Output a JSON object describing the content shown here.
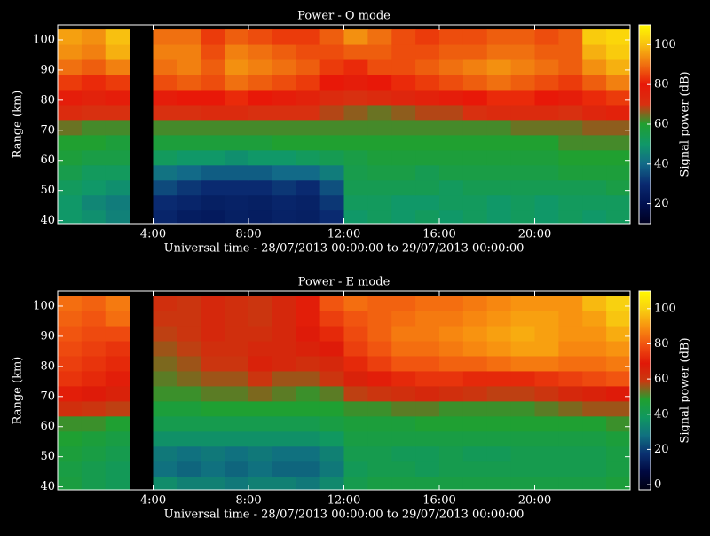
{
  "chart_data": [
    {
      "type": "heatmap",
      "title": "Power - O mode",
      "xlabel": "Universal time - 28/07/2013 00:00:00 to 29/07/2013 00:00:00",
      "ylabel": "Range (km)",
      "colorbar_label": "Signal power (dB)",
      "x": [
        0.5,
        1.5,
        2.5,
        3.5,
        4.5,
        5.5,
        6.5,
        7.5,
        8.5,
        9.5,
        10.5,
        11.5,
        12.5,
        13.5,
        14.5,
        15.5,
        16.5,
        17.5,
        18.5,
        19.5,
        20.5,
        21.5,
        22.5,
        23.5
      ],
      "y": [
        41,
        46,
        51,
        56,
        61,
        66,
        71,
        76,
        81,
        86,
        91,
        96,
        101
      ],
      "z": [
        [
          50,
          48,
          45,
          null,
          28,
          25,
          24,
          26,
          25,
          27,
          26,
          30,
          50,
          52,
          50,
          52,
          50,
          52,
          50,
          52,
          50,
          52,
          50,
          52
        ],
        [
          50,
          46,
          44,
          null,
          30,
          28,
          26,
          27,
          26,
          28,
          27,
          32,
          52,
          52,
          50,
          50,
          52,
          52,
          50,
          52,
          50,
          52,
          52,
          52
        ],
        [
          52,
          50,
          48,
          null,
          35,
          32,
          30,
          30,
          30,
          32,
          30,
          36,
          54,
          54,
          54,
          54,
          52,
          54,
          54,
          54,
          54,
          54,
          54,
          56
        ],
        [
          55,
          52,
          52,
          null,
          42,
          40,
          38,
          38,
          38,
          40,
          40,
          44,
          55,
          56,
          56,
          54,
          56,
          56,
          56,
          56,
          56,
          58,
          58,
          58
        ],
        [
          58,
          56,
          56,
          null,
          52,
          50,
          50,
          48,
          50,
          50,
          52,
          54,
          56,
          58,
          58,
          58,
          58,
          58,
          58,
          58,
          58,
          60,
          60,
          60
        ],
        [
          60,
          60,
          58,
          null,
          58,
          58,
          58,
          58,
          58,
          60,
          60,
          60,
          60,
          60,
          60,
          60,
          60,
          60,
          60,
          60,
          60,
          62,
          62,
          62
        ],
        [
          64,
          62,
          62,
          null,
          62,
          62,
          62,
          62,
          62,
          62,
          62,
          62,
          62,
          62,
          62,
          62,
          62,
          62,
          62,
          64,
          64,
          64,
          66,
          66
        ],
        [
          72,
          70,
          70,
          null,
          70,
          70,
          72,
          72,
          70,
          70,
          70,
          68,
          66,
          64,
          66,
          68,
          68,
          70,
          72,
          72,
          72,
          70,
          74,
          76
        ],
        [
          78,
          76,
          78,
          null,
          78,
          80,
          80,
          82,
          80,
          78,
          76,
          72,
          70,
          72,
          74,
          76,
          78,
          80,
          82,
          82,
          80,
          78,
          82,
          84
        ],
        [
          84,
          82,
          84,
          null,
          86,
          88,
          86,
          90,
          88,
          86,
          84,
          80,
          78,
          80,
          82,
          84,
          86,
          88,
          90,
          88,
          86,
          84,
          88,
          92
        ],
        [
          90,
          88,
          92,
          null,
          90,
          92,
          88,
          94,
          92,
          90,
          88,
          84,
          82,
          86,
          86,
          88,
          90,
          92,
          94,
          92,
          90,
          88,
          94,
          98
        ],
        [
          94,
          92,
          98,
          null,
          92,
          92,
          86,
          92,
          90,
          88,
          86,
          86,
          88,
          88,
          86,
          86,
          88,
          88,
          90,
          90,
          88,
          88,
          98,
          102
        ],
        [
          96,
          94,
          100,
          null,
          90,
          90,
          84,
          88,
          86,
          84,
          84,
          88,
          94,
          90,
          86,
          84,
          86,
          86,
          88,
          88,
          86,
          88,
          102,
          104
        ]
      ],
      "xlim": [
        0,
        24
      ],
      "xticks": [
        {
          "value": 4,
          "label": "4:00"
        },
        {
          "value": 8,
          "label": "8:00"
        },
        {
          "value": 12,
          "label": "12:00"
        },
        {
          "value": 16,
          "label": "16:00"
        },
        {
          "value": 20,
          "label": "20:00"
        }
      ],
      "ylim": [
        39,
        105
      ],
      "yticks": [
        40,
        50,
        60,
        70,
        80,
        90,
        100
      ],
      "clim": [
        10,
        110
      ],
      "cticks": [
        20,
        40,
        60,
        80,
        100
      ],
      "colors": [
        "#000020",
        "#001050",
        "#0a2a70",
        "#126a88",
        "#109868",
        "#20a030",
        "#d83010",
        "#e81808",
        "#f07010",
        "#f8c010",
        "#fff800"
      ]
    },
    {
      "type": "heatmap",
      "title": "Power - E mode",
      "xlabel": "Universal time - 28/07/2013 00:00:00 to 29/07/2013 00:00:00",
      "ylabel": "Range (km)",
      "colorbar_label": "Signal power (dB)",
      "x": [
        0.5,
        1.5,
        2.5,
        3.5,
        4.5,
        5.5,
        6.5,
        7.5,
        8.5,
        9.5,
        10.5,
        11.5,
        12.5,
        13.5,
        14.5,
        15.5,
        16.5,
        17.5,
        18.5,
        19.5,
        20.5,
        21.5,
        22.5,
        23.5
      ],
      "y": [
        41,
        46,
        51,
        56,
        61,
        66,
        71,
        76,
        81,
        86,
        91,
        96,
        101
      ],
      "z": [
        [
          45,
          42,
          40,
          null,
          35,
          32,
          32,
          30,
          32,
          32,
          30,
          34,
          42,
          44,
          44,
          44,
          44,
          44,
          44,
          44,
          44,
          44,
          44,
          46
        ],
        [
          44,
          42,
          40,
          null,
          28,
          26,
          28,
          26,
          28,
          26,
          26,
          30,
          40,
          42,
          42,
          40,
          42,
          42,
          42,
          42,
          42,
          42,
          42,
          44
        ],
        [
          46,
          44,
          42,
          null,
          30,
          28,
          30,
          28,
          30,
          28,
          28,
          32,
          42,
          42,
          40,
          40,
          42,
          40,
          40,
          42,
          42,
          42,
          42,
          44
        ],
        [
          48,
          46,
          44,
          null,
          36,
          36,
          36,
          36,
          36,
          36,
          36,
          38,
          44,
          44,
          44,
          44,
          44,
          44,
          44,
          44,
          44,
          44,
          44,
          46
        ],
        [
          50,
          50,
          48,
          null,
          42,
          42,
          42,
          42,
          42,
          42,
          42,
          44,
          46,
          46,
          46,
          48,
          48,
          48,
          48,
          48,
          48,
          48,
          48,
          50
        ],
        [
          62,
          60,
          58,
          null,
          46,
          46,
          48,
          48,
          48,
          48,
          48,
          48,
          50,
          50,
          52,
          52,
          50,
          50,
          50,
          50,
          52,
          54,
          56,
          56
        ],
        [
          70,
          68,
          66,
          null,
          50,
          50,
          52,
          52,
          54,
          52,
          50,
          52,
          58,
          60,
          62,
          64,
          62,
          60,
          58,
          58,
          60,
          64,
          66,
          68
        ],
        [
          74,
          72,
          70,
          null,
          52,
          54,
          56,
          56,
          60,
          56,
          56,
          60,
          66,
          70,
          72,
          74,
          74,
          72,
          72,
          72,
          74,
          76,
          78,
          80
        ],
        [
          76,
          74,
          72,
          null,
          54,
          56,
          60,
          60,
          66,
          64,
          62,
          64,
          72,
          76,
          80,
          80,
          82,
          82,
          84,
          86,
          86,
          84,
          84,
          86
        ],
        [
          78,
          76,
          74,
          null,
          56,
          58,
          62,
          62,
          64,
          64,
          66,
          68,
          76,
          80,
          84,
          84,
          86,
          88,
          90,
          92,
          92,
          88,
          88,
          90
        ],
        [
          80,
          78,
          78,
          null,
          58,
          60,
          64,
          62,
          62,
          64,
          68,
          72,
          78,
          82,
          86,
          86,
          88,
          90,
          92,
          94,
          92,
          90,
          90,
          94
        ],
        [
          82,
          80,
          84,
          null,
          60,
          60,
          64,
          62,
          60,
          64,
          70,
          76,
          80,
          82,
          84,
          86,
          86,
          88,
          90,
          92,
          92,
          90,
          92,
          98
        ],
        [
          84,
          82,
          86,
          null,
          62,
          60,
          64,
          62,
          60,
          64,
          70,
          80,
          84,
          82,
          82,
          84,
          84,
          86,
          88,
          90,
          90,
          90,
          96,
          100
        ]
      ],
      "xlim": [
        0,
        24
      ],
      "xticks": [
        {
          "value": 4,
          "label": "4:00"
        },
        {
          "value": 8,
          "label": "8:00"
        },
        {
          "value": 12,
          "label": "12:00"
        },
        {
          "value": 16,
          "label": "16:00"
        },
        {
          "value": 20,
          "label": "20:00"
        }
      ],
      "ylim": [
        39,
        105
      ],
      "yticks": [
        40,
        50,
        60,
        70,
        80,
        90,
        100
      ],
      "clim": [
        -3,
        110
      ],
      "cticks": [
        0,
        20,
        40,
        60,
        80,
        100
      ],
      "colors": [
        "#000010",
        "#000840",
        "#0a3070",
        "#107080",
        "#109860",
        "#20a030",
        "#c83a10",
        "#e01808",
        "#f05010",
        "#f89010",
        "#f8d010",
        "#fff800"
      ]
    }
  ]
}
